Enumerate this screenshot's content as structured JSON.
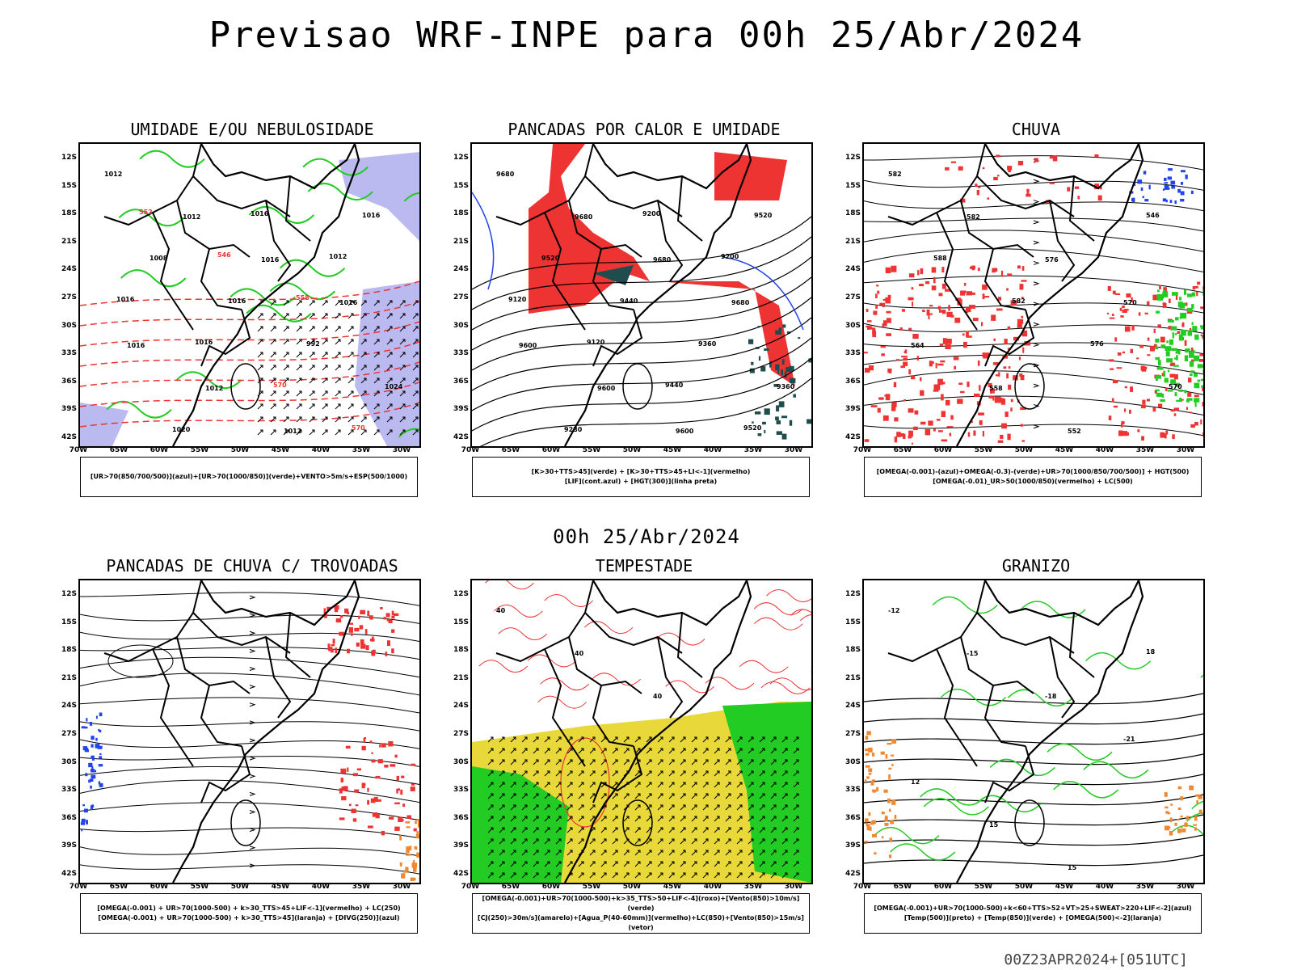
{
  "header": {
    "title": "Previsao WRF-INPE  para 00h 25/Abr/2024",
    "mid_date": "00h 25/Abr/2024",
    "footer": "00Z23APR2024+[051UTC]"
  },
  "axes": {
    "lat_labels": [
      "12S",
      "15S",
      "18S",
      "21S",
      "24S",
      "27S",
      "30S",
      "33S",
      "36S",
      "39S",
      "42S"
    ],
    "lon_labels": [
      "70W",
      "65W",
      "60W",
      "55W",
      "50W",
      "45W",
      "40W",
      "35W",
      "30W"
    ]
  },
  "colors": {
    "blue_fill": "#a9a9ee",
    "green": "#22cc22",
    "red": "#ee3333",
    "dark_teal": "#1f4d4d",
    "yellow": "#e8d83a",
    "orange": "#ee8833",
    "blue": "#2244ee"
  },
  "panels": [
    {
      "title": "UMIDADE E/OU NEBULOSIDADE",
      "legend": [
        "[UR>70(850/700/500)](azul)+[UR>70(1000/850)](verde)+VENTO>5m/s+ESP(500/1000)"
      ],
      "labels": [
        "1012",
        "1012",
        "1016",
        "1016",
        "1016",
        "1012",
        "1012",
        "1016",
        "1008",
        "1016",
        "992",
        "1024",
        "1020",
        "1016",
        "1012",
        "1016",
        "1016",
        "570",
        "570",
        "552",
        "546",
        "558"
      ]
    },
    {
      "title": "PANCADAS POR CALOR E UMIDADE",
      "legend": [
        "[K>30+TTS>45](verde)  +  [K>30+TTS>45+LI<-1](vermelho)",
        "[LIF](cont.azul)  +  [HGT(300)](linha preta)"
      ],
      "labels": [
        "9680",
        "9680",
        "9680",
        "9680",
        "9600",
        "9600",
        "9600",
        "9520",
        "9520",
        "9440",
        "9360",
        "9360",
        "9280",
        "9200",
        "9200",
        "9120",
        "9120",
        "9440",
        "9520"
      ]
    },
    {
      "title": "CHUVA",
      "legend": [
        "[OMEGA(-0.001)-(azul)+OMEGA(-0.3)-(verde)+UR>70(1000/850/700/500)]  +  HGT(500)",
        "[OMEGA(-0.01)_UR>50(1000/850)(vermelho)  +  LC(500)"
      ],
      "labels": [
        "582",
        "582",
        "576",
        "570",
        "564",
        "558",
        "552",
        "546",
        "588",
        "582",
        "576",
        "570"
      ]
    },
    {
      "title": "PANCADAS DE CHUVA C/ TROVOADAS",
      "legend": [
        "[OMEGA(-0.001)  +  UR>70(1000-500)  +  k>30_TTS>45+LIF<-1](vermelho)  +  LC(250)",
        "[OMEGA(-0.001)  +  UR>70(1000-500)  +  k>30_TTS>45](laranja)  +  [DIVG(250)](azul)"
      ],
      "labels": []
    },
    {
      "title": "TEMPESTADE",
      "legend": [
        "[OMEGA(-0.001)+UR>70(1000-500)+k>35_TTS>50+LIF<-4](roxo)+[Vento(850)>10m/s](verde)",
        "[CJ(250)>30m/s](amarelo)+[Agua_P(40-60mm)](vermelho)+LC(850)+[Vento(850)>15m/s](vetor)"
      ],
      "labels": [
        "40",
        "40",
        "40"
      ]
    },
    {
      "title": "GRANIZO",
      "legend": [
        "[OMEGA(-0.001)+UR>70(1000-500)+k<60+TTS>52+VT>25+SWEAT>220+LIF<-2](azul)",
        "[Temp(500)](preto)  +  [Temp(850)](verde)  +  [OMEGA(500)<-2](laranja)"
      ],
      "labels": [
        "-12",
        "-15",
        "-18",
        "-21",
        "12",
        "15",
        "15",
        "18"
      ]
    }
  ]
}
